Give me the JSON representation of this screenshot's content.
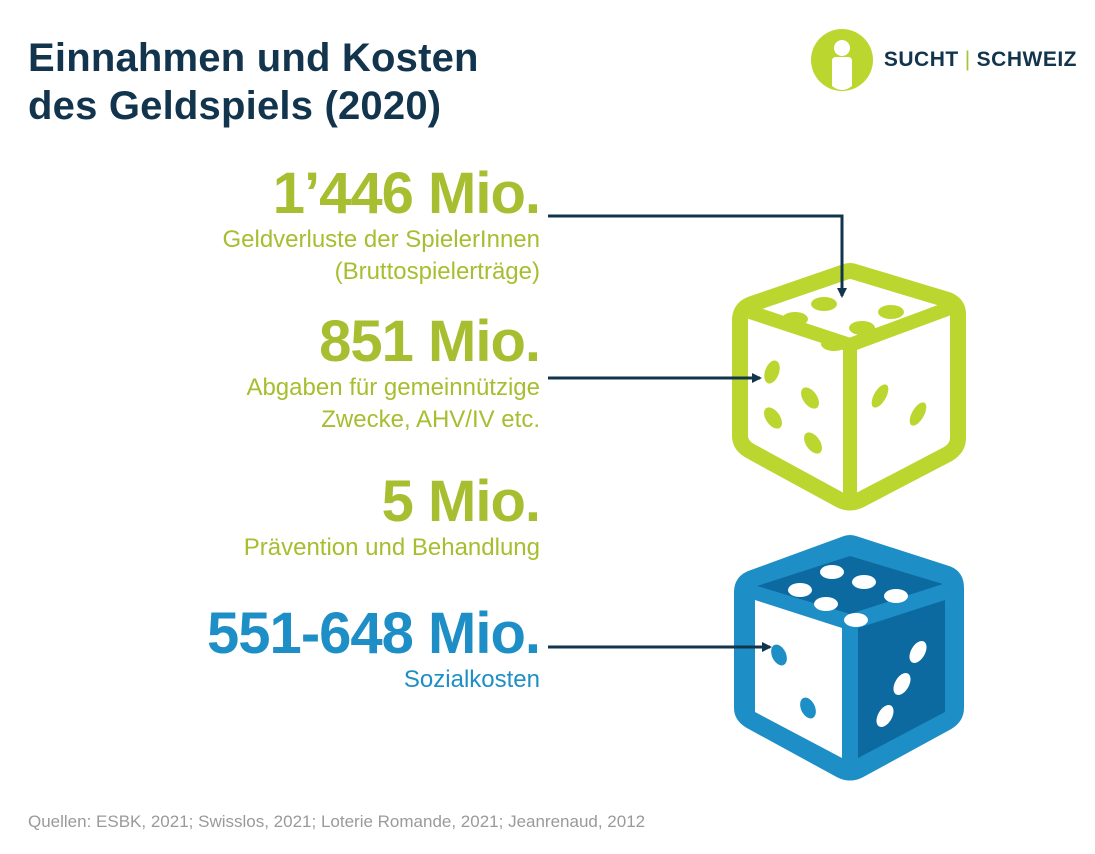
{
  "title": "Einnahmen und Kosten\ndes Geldspiels (2020)",
  "logo": {
    "left": "SUCHT",
    "separator": "|",
    "right": "SCHWEIZ"
  },
  "items": [
    {
      "amount": "1’446 Mio.",
      "description": "Geldverluste der SpielerInnen\n(Bruttospielerträge)",
      "color": "#a6be2f"
    },
    {
      "amount": "851 Mio.",
      "description": "Abgaben für gemeinnützige\nZwecke, AHV/IV etc.",
      "color": "#a6be2f"
    },
    {
      "amount": "5 Mio.",
      "description": "Prävention und Behandlung",
      "color": "#a6be2f"
    },
    {
      "amount": "551-648 Mio.",
      "description": "Sozialkosten",
      "color": "#1d8fc6"
    }
  ],
  "colors": {
    "navy": "#12344d",
    "green_die": "#bcd630",
    "blue_die": "#1d8fc6",
    "blue_dark": "#0d6aa0"
  },
  "icons": [
    "logo-person-icon",
    "green-die-icon",
    "blue-die-icon",
    "arrow-icon"
  ],
  "source": "Quellen: ESBK, 2021; Swisslos, 2021; Loterie Romande, 2021; Jeanrenaud, 2012"
}
